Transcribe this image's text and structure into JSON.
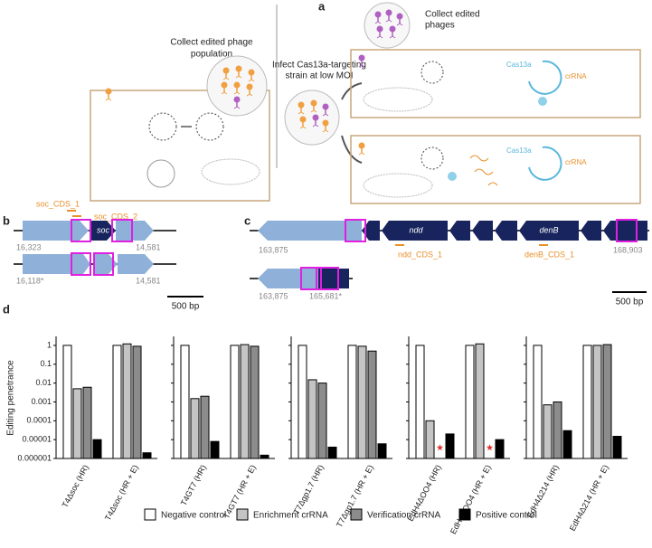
{
  "panel_a": {
    "label": "a",
    "collect_population": [
      "Collect edited phage",
      "population"
    ],
    "infect": [
      "Infect Cas13a-targeting",
      "strain at low MOI"
    ],
    "collect_phages": [
      "Collect edited",
      "phages"
    ],
    "cas13a_top": "Cas13a",
    "crrna_top": "crRNA",
    "cas13a_bottom": "Cas13a",
    "crrna_bottom": "crRNA"
  },
  "panel_b": {
    "label": "b",
    "guide_1": "soc_CDS_1",
    "guide_2": "soc_CDS_2",
    "gene": "soc",
    "wt_left": "16,323",
    "wt_right": "14,581",
    "edit_left": "16,118*",
    "edit_right": "14,581",
    "scale": "500 bp"
  },
  "panel_c": {
    "label": "c",
    "gene_1": "ndd",
    "gene_2": "denB",
    "wt_left": "163,875",
    "wt_right": "168,903",
    "guide_1": "ndd_CDS_1",
    "guide_2": "denB_CDS_1",
    "edit_left": "163,875",
    "edit_right": "165,681*",
    "scale": "500 bp"
  },
  "chart_data": {
    "panel_label": "d",
    "type": "bar",
    "y_label": "Editing penetrance",
    "log_scale": true,
    "ylim": [
      1e-06,
      3
    ],
    "yticks": [
      1,
      0.1,
      0.01,
      0.001,
      0.0001,
      1e-05,
      1e-06
    ],
    "categories": [
      "T4Δsoc (HR)",
      "T4Δsoc (HR + E)",
      "T4GT7 (HR)",
      "T4GT7 (HR + E)",
      "T7Δgp1.7 (HR)",
      "T7Δgp1.7 (HR + E)",
      "EdH4ΔOO4 (HR)",
      "EdH4ΔOO4 (HR + E)",
      "EdH4Δ214 (HR)",
      "EdH4Δ214 (HR + E)"
    ],
    "series": [
      {
        "name": "Negative control",
        "color": "#ffffff",
        "values": [
          1,
          1,
          1,
          1,
          1,
          1,
          1,
          1,
          1,
          1
        ]
      },
      {
        "name": "Enrichment crRNA",
        "color": "#c4c4c4",
        "values": [
          0.005,
          1.2,
          0.0015,
          1.1,
          0.015,
          0.9,
          0.0001,
          1.2,
          0.0007,
          1
        ]
      },
      {
        "name": "Verification crRNA",
        "color": "#8c8c8c",
        "values": [
          0.006,
          0.9,
          0.002,
          0.9,
          0.01,
          0.5,
          null,
          null,
          0.001,
          1.1
        ]
      },
      {
        "name": "Positive control",
        "color": "#000000",
        "values": [
          1e-05,
          2e-06,
          8e-06,
          1.5e-06,
          4e-06,
          6e-06,
          2e-05,
          1e-05,
          3e-05,
          1.5e-05
        ]
      }
    ]
  }
}
